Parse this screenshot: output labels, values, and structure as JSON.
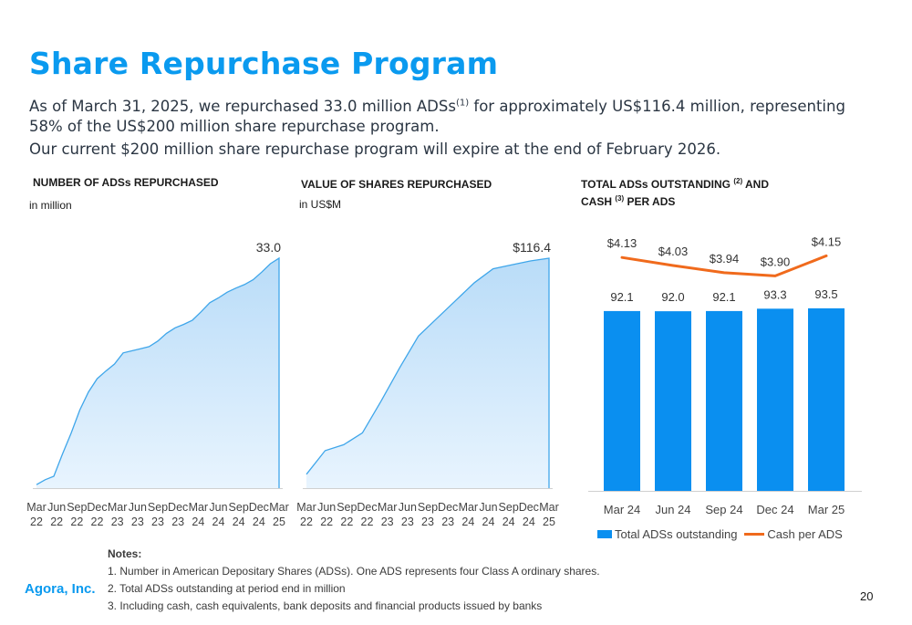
{
  "page": {
    "title": "Share Repurchase Program",
    "para1_pre": "As of March 31, 2025, we repurchased 33.0 million ADSs",
    "para1_sup": "(1)",
    "para1_post": " for approximately US$116.4 million, representing 58% of the US$200 million share repurchase program.",
    "para2": "Our current $200 million share repurchase program will expire at the end of February 2026.",
    "brand": "Agora, Inc.",
    "page_number": "20"
  },
  "notes": {
    "title": "Notes:",
    "items": [
      "1. Number in American Depositary Shares (ADSs). One ADS represents four Class A ordinary shares.",
      "2. Total ADSs outstanding at period end in million",
      "3. Including cash, cash equivalents, bank deposits and financial products issued by banks"
    ]
  },
  "panels": {
    "adss": {
      "header": "NUMBER OF ADSs REPURCHASED",
      "sub": "in million"
    },
    "value": {
      "header": "VALUE OF SHARES REPURCHASED",
      "sub": "in US$M"
    },
    "outstanding": {
      "header_a": "TOTAL ADSs OUTSTANDING ",
      "header_sup1": "(2)",
      "header_b": " AND",
      "header_c": "CASH ",
      "header_sup2": "(3)",
      "header_d": " PER ADS"
    }
  },
  "colors": {
    "accent": "#0a9aef",
    "bar": "#0a8ff0",
    "line": "#f06a1c",
    "area_stroke": "#3fa6ea",
    "area_top": "#b9dcf8",
    "area_bottom": "#e8f4fe"
  },
  "chart_data": [
    {
      "type": "area",
      "title": "NUMBER OF ADSs REPURCHASED",
      "ylabel": "in million",
      "categories": [
        "Mar 22",
        "Jun 22",
        "Sep 22",
        "Dec 22",
        "Mar 23",
        "Jun 23",
        "Sep 23",
        "Dec 23",
        "Mar 24",
        "Jun 24",
        "Sep 24",
        "Dec 24",
        "Mar 25"
      ],
      "x_ticks": [
        [
          "Mar",
          "22"
        ],
        [
          "Jun",
          "22"
        ],
        [
          "Sep",
          "22"
        ],
        [
          "Dec",
          "22"
        ],
        [
          "Mar",
          "23"
        ],
        [
          "Jun",
          "23"
        ],
        [
          "Sep",
          "23"
        ],
        [
          "Dec",
          "23"
        ],
        [
          "Mar",
          "24"
        ],
        [
          "Jun",
          "24"
        ],
        [
          "Sep",
          "24"
        ],
        [
          "Dec",
          "24"
        ],
        [
          "Mar",
          "25"
        ]
      ],
      "points": [
        0.5,
        1.2,
        1.7,
        4.9,
        7.9,
        11.2,
        13.8,
        15.7,
        16.8,
        17.8,
        19.4,
        19.7,
        20.0,
        20.3,
        21.1,
        22.2,
        23.0,
        23.5,
        24.1,
        25.3,
        26.6,
        27.3,
        28.1,
        28.7,
        29.2,
        29.9,
        31.0,
        32.2,
        33.0
      ],
      "values": [
        0.5,
        1.7,
        7.9,
        13.8,
        16.8,
        19.7,
        21.1,
        23.5,
        26.6,
        28.7,
        31.0,
        32.2,
        33.0
      ],
      "end_label": "33.0",
      "ylim": [
        0,
        36
      ]
    },
    {
      "type": "area",
      "title": "VALUE OF SHARES REPURCHASED",
      "ylabel": "in US$M",
      "categories": [
        "Mar 22",
        "Jun 22",
        "Sep 22",
        "Dec 22",
        "Mar 23",
        "Jun 23",
        "Sep 23",
        "Dec 23",
        "Mar 24",
        "Jun 24",
        "Sep 24",
        "Dec 24",
        "Mar 25"
      ],
      "x_ticks": [
        [
          "Mar",
          "22"
        ],
        [
          "Jun",
          "22"
        ],
        [
          "Sep",
          "22"
        ],
        [
          "Dec",
          "22"
        ],
        [
          "Mar",
          "23"
        ],
        [
          "Jun",
          "23"
        ],
        [
          "Sep",
          "23"
        ],
        [
          "Dec",
          "23"
        ],
        [
          "Mar",
          "24"
        ],
        [
          "Jun",
          "24"
        ],
        [
          "Sep",
          "24"
        ],
        [
          "Dec",
          "24"
        ],
        [
          "Mar",
          "25"
        ]
      ],
      "points": [
        7,
        19,
        22,
        28,
        44,
        61,
        77,
        86,
        95,
        104,
        111,
        113,
        115,
        116.4
      ],
      "values": [
        7,
        19,
        22,
        28,
        44,
        61,
        77,
        86,
        95,
        104,
        111,
        113,
        116.4
      ],
      "end_label": "$116.4",
      "ylim": [
        0,
        127
      ]
    },
    {
      "type": "bar",
      "title": "TOTAL ADSs OUTSTANDING AND CASH PER ADS",
      "categories": [
        "Mar 24",
        "Jun 24",
        "Sep 24",
        "Dec 24",
        "Mar 25"
      ],
      "series": [
        {
          "name": "Total ADSs outstanding",
          "kind": "bar",
          "values": [
            92.1,
            92.0,
            92.1,
            93.3,
            93.5
          ],
          "labels": [
            "92.1",
            "92.0",
            "92.1",
            "93.3",
            "93.5"
          ]
        },
        {
          "name": "Cash per ADS",
          "kind": "line",
          "values": [
            4.13,
            4.03,
            3.94,
            3.9,
            4.15
          ],
          "labels": [
            "$4.13",
            "$4.03",
            "$3.94",
            "$3.90",
            "$4.15"
          ]
        }
      ],
      "legend": "bottom"
    }
  ]
}
